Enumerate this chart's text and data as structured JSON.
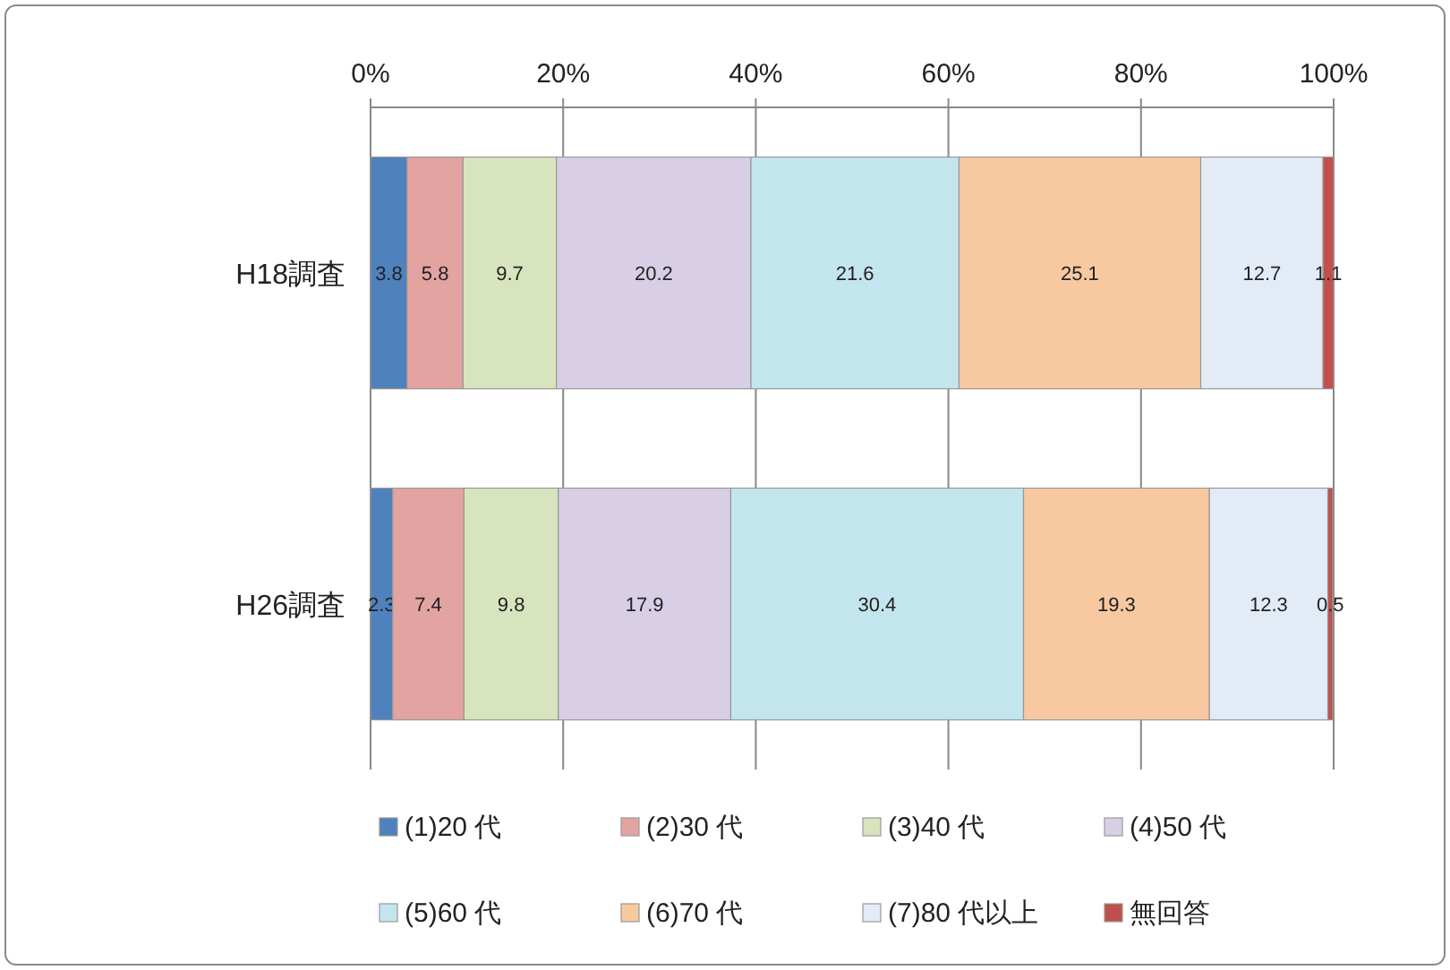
{
  "chart_data": {
    "type": "bar",
    "orientation": "horizontal",
    "stacked": true,
    "categories": [
      "H18調査",
      "H26調査"
    ],
    "series": [
      {
        "name": "(1)20 代",
        "color": "#4f81bd",
        "values": [
          3.8,
          2.3
        ]
      },
      {
        "name": "(2)30 代",
        "color": "#e3a3a1",
        "values": [
          5.8,
          7.4
        ]
      },
      {
        "name": "(3)40 代",
        "color": "#d7e4bd",
        "values": [
          9.7,
          9.8
        ]
      },
      {
        "name": "(4)50 代",
        "color": "#d8cfe6",
        "values": [
          20.2,
          17.9
        ]
      },
      {
        "name": "(5)60 代",
        "color": "#c3e5ee",
        "values": [
          21.6,
          30.4
        ]
      },
      {
        "name": "(6)70 代",
        "color": "#f8c9a0",
        "values": [
          25.1,
          19.3
        ]
      },
      {
        "name": "(7)80 代以上",
        "color": "#e2ebf6",
        "values": [
          12.7,
          12.3
        ]
      },
      {
        "name": "無回答",
        "color": "#c0504d",
        "values": [
          1.1,
          0.5
        ]
      }
    ],
    "xlim": [
      0,
      100
    ],
    "xticks": [
      {
        "value": 0,
        "label": "0%"
      },
      {
        "value": 20,
        "label": "20%"
      },
      {
        "value": 40,
        "label": "40%"
      },
      {
        "value": 60,
        "label": "60%"
      },
      {
        "value": 80,
        "label": "80%"
      },
      {
        "value": 100,
        "label": "100%"
      }
    ],
    "grid": "x",
    "legend": "bottom",
    "data_labels": true
  }
}
